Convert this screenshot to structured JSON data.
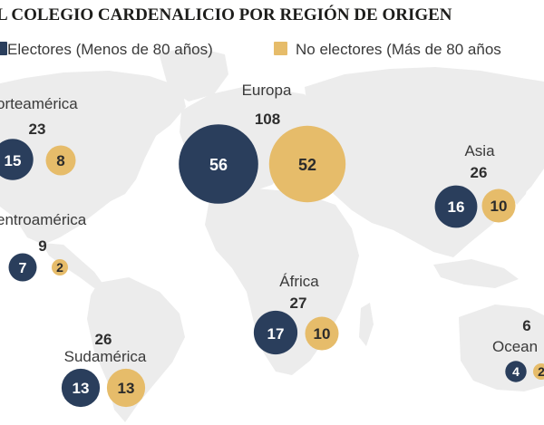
{
  "title": "L COLEGIO CARDENALICIO POR REGIÓN DE ORIGEN",
  "legend": {
    "electores": "Electores (Menos de 80 años)",
    "no_electores": "No electores (Más de 80 años"
  },
  "colors": {
    "electores": "#2a3e5c",
    "no_electores": "#e6bc6a",
    "map": "#ececec"
  },
  "chart_data": {
    "type": "bubble",
    "title": "L COLEGIO CARDENALICIO POR REGIÓN DE ORIGEN",
    "series": [
      "Electores (Menos de 80 años)",
      "No electores (Más de 80 años"
    ],
    "regions": [
      {
        "id": "norteamerica",
        "label": "orteamérica",
        "total": 23,
        "electores": 15,
        "no_electores": 8
      },
      {
        "id": "europa",
        "label": "Europa",
        "total": 108,
        "electores": 56,
        "no_electores": 52
      },
      {
        "id": "asia",
        "label": "Asia",
        "total": 26,
        "electores": 16,
        "no_electores": 10
      },
      {
        "id": "centroamerica",
        "label": "entroamérica",
        "total": 9,
        "electores": 7,
        "no_electores": 2
      },
      {
        "id": "africa",
        "label": "África",
        "total": 27,
        "electores": 17,
        "no_electores": 10
      },
      {
        "id": "sudamerica",
        "label": "Sudamérica",
        "total": 26,
        "electores": 13,
        "no_electores": 13
      },
      {
        "id": "oceania",
        "label": "Ocean",
        "total": 6,
        "electores": 4,
        "no_electores": 2
      }
    ]
  }
}
